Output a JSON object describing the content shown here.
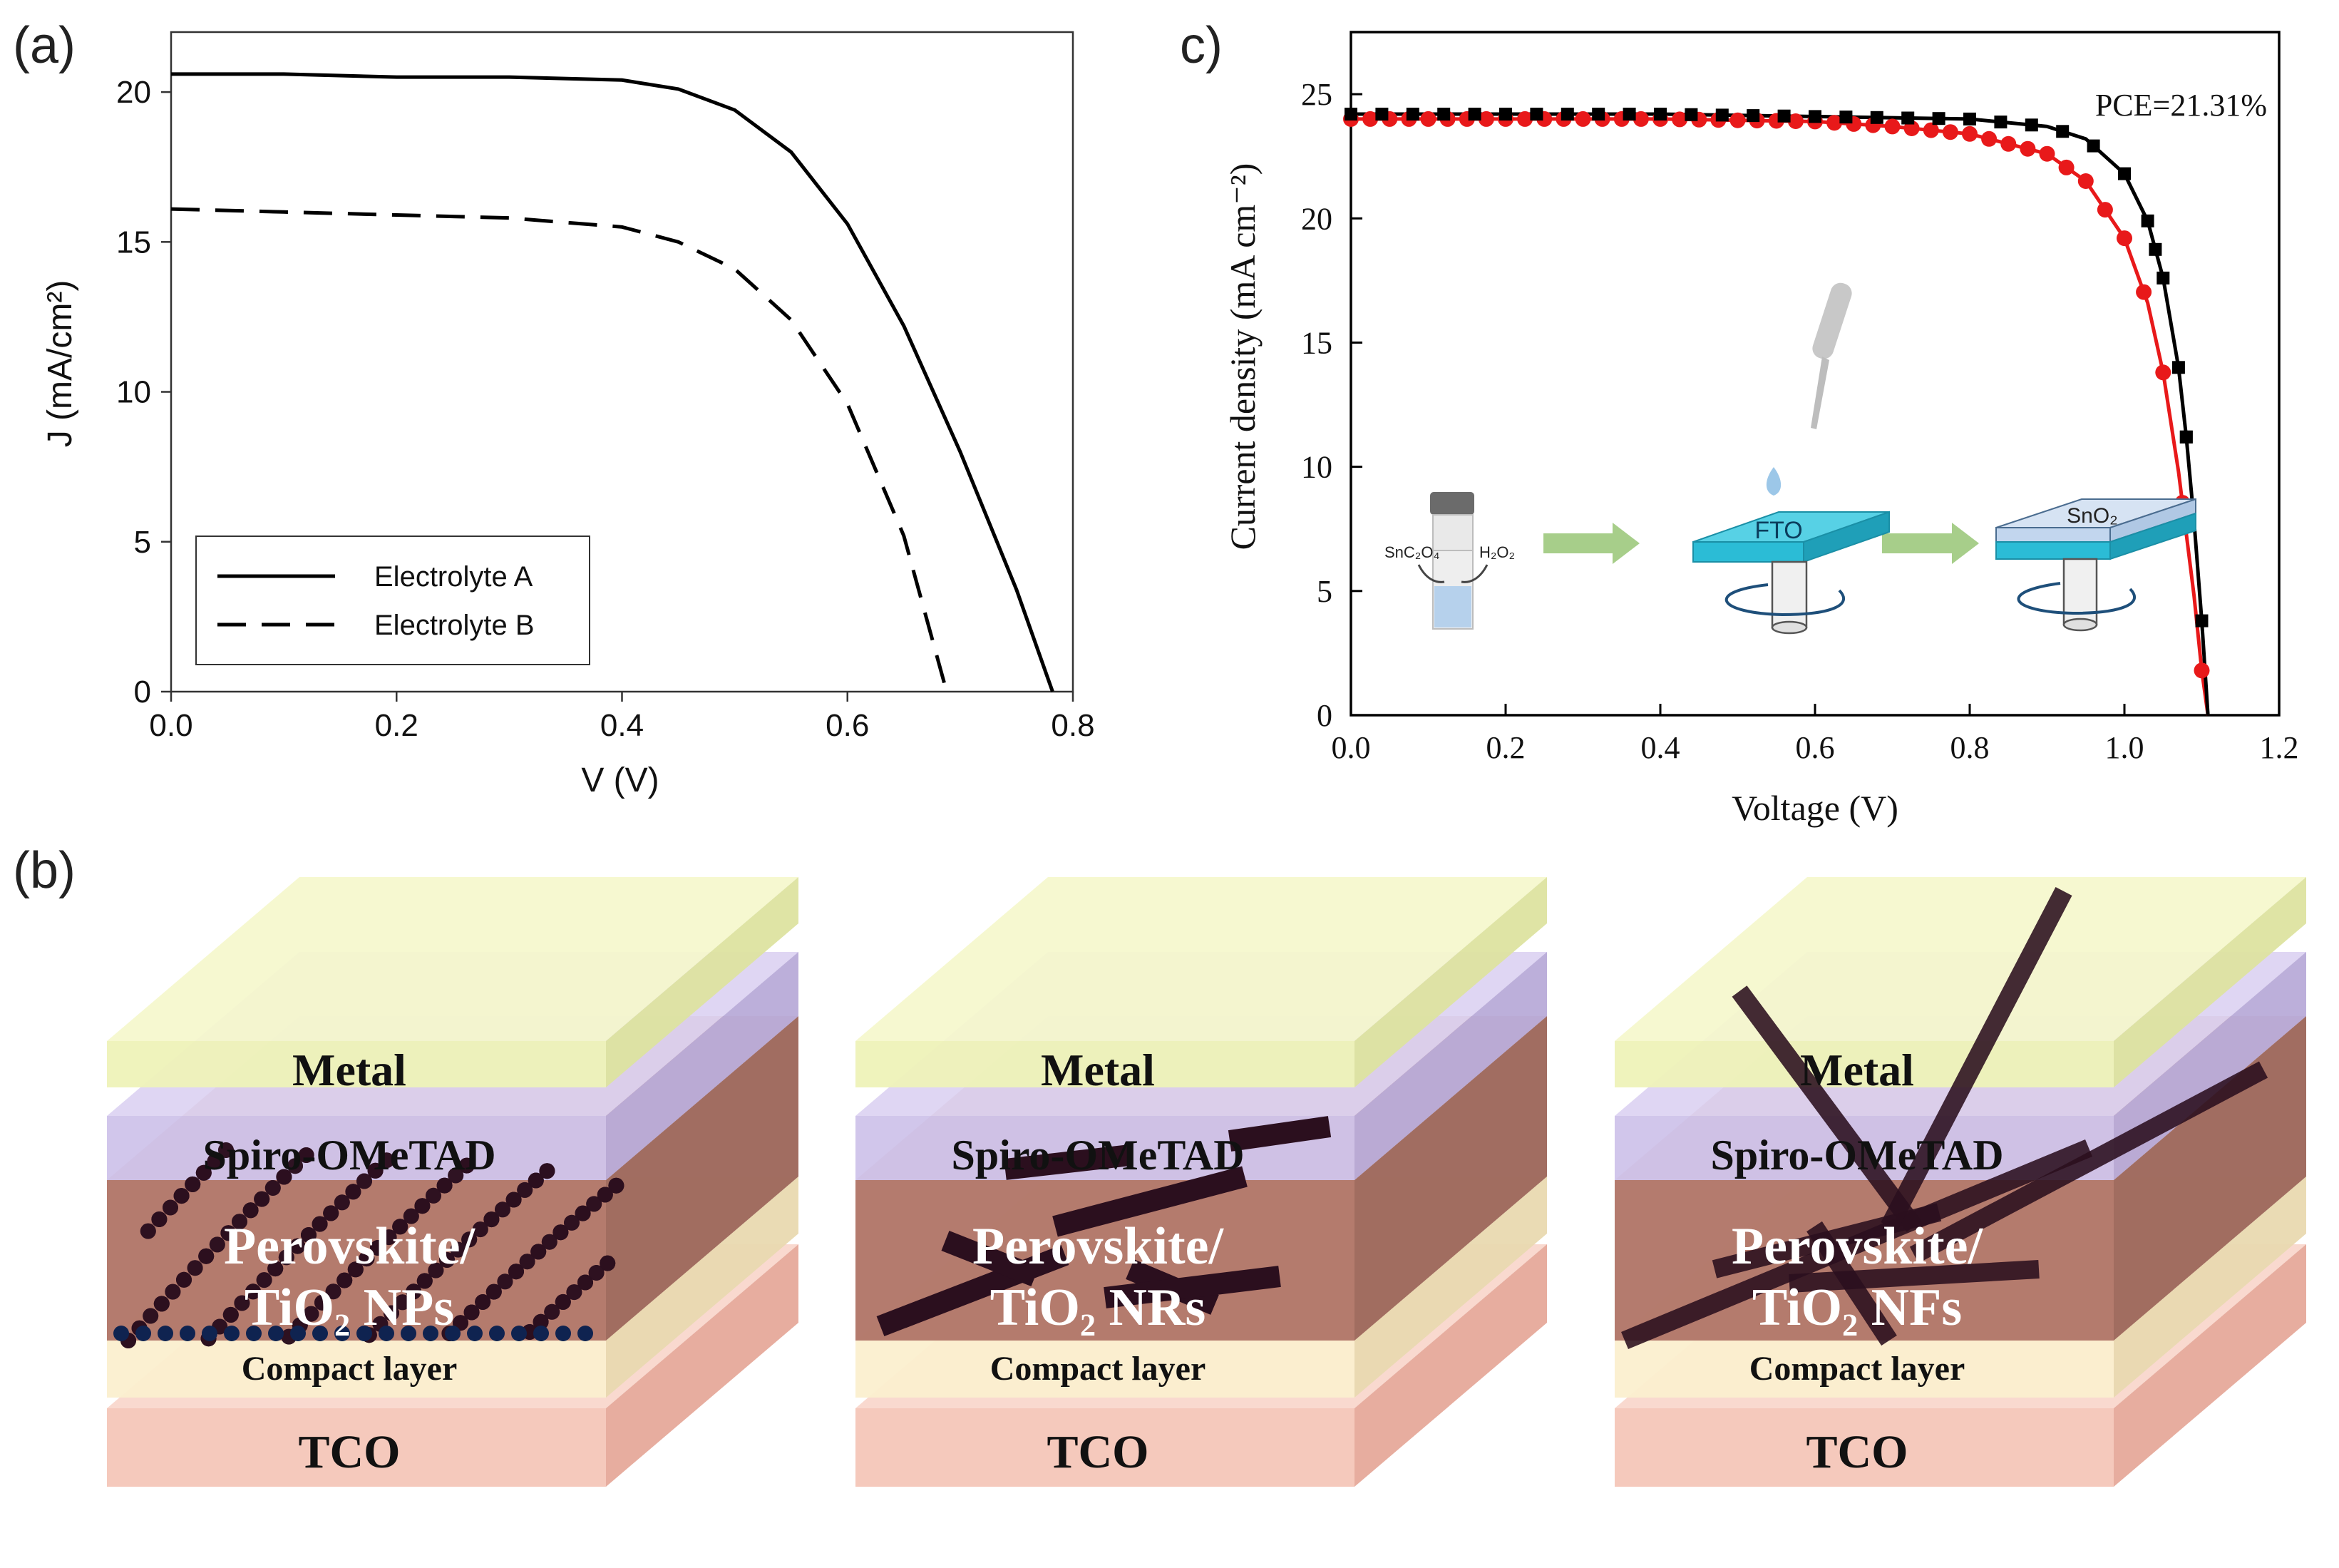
{
  "panel_labels": {
    "a": "(a)",
    "b": "(b)",
    "c": "c)"
  },
  "chart_data": [
    {
      "panel": "(a)",
      "type": "line",
      "xlabel": "V (V)",
      "ylabel": "J (mA/cm²)",
      "xlim": [
        0.0,
        0.8
      ],
      "ylim": [
        0,
        22
      ],
      "xticks": [
        "0.0",
        "0.2",
        "0.4",
        "0.6",
        "0.8"
      ],
      "yticks": [
        "0",
        "5",
        "10",
        "15",
        "20"
      ],
      "legend_position": "bottom-left",
      "series": [
        {
          "name": "Electrolyte A",
          "style": "solid",
          "x": [
            0.0,
            0.1,
            0.2,
            0.3,
            0.4,
            0.45,
            0.5,
            0.55,
            0.6,
            0.65,
            0.7,
            0.75,
            0.782
          ],
          "y": [
            20.6,
            20.6,
            20.5,
            20.5,
            20.4,
            20.1,
            19.4,
            18.0,
            15.6,
            12.2,
            8.0,
            3.4,
            0.0
          ]
        },
        {
          "name": "Electrolyte B",
          "style": "dashed",
          "x": [
            0.0,
            0.1,
            0.2,
            0.3,
            0.4,
            0.45,
            0.5,
            0.55,
            0.6,
            0.65,
            0.688
          ],
          "y": [
            16.1,
            16.0,
            15.9,
            15.8,
            15.5,
            15.0,
            14.1,
            12.4,
            9.6,
            5.2,
            0.0
          ]
        }
      ]
    },
    {
      "panel": "c)",
      "type": "line",
      "xlabel": "Voltage (V)",
      "ylabel": "Current density (mA cm⁻²)",
      "xlim": [
        0.0,
        1.2
      ],
      "ylim": [
        0,
        27.5
      ],
      "xticks": [
        "0.0",
        "0.2",
        "0.4",
        "0.6",
        "0.8",
        "1.0",
        "1.2"
      ],
      "yticks": [
        "0",
        "5",
        "10",
        "15",
        "20",
        "25"
      ],
      "annotation": "PCE=21.31%",
      "series": [
        {
          "name": "black (square markers)",
          "color": "#000000",
          "marker": "square",
          "x": [
            0.0,
            0.2,
            0.4,
            0.6,
            0.8,
            0.9,
            0.95,
            1.0,
            1.03,
            1.05,
            1.07,
            1.08,
            1.09,
            1.1,
            1.108
          ],
          "y": [
            24.2,
            24.2,
            24.2,
            24.1,
            24.0,
            23.7,
            23.2,
            21.8,
            19.9,
            17.6,
            14.0,
            11.2,
            7.8,
            3.8,
            0.0
          ]
        },
        {
          "name": "red (circle markers)",
          "color": "#e8191a",
          "marker": "circle",
          "x": [
            0.0,
            0.2,
            0.4,
            0.6,
            0.7,
            0.8,
            0.9,
            0.95,
            1.0,
            1.03,
            1.05,
            1.07,
            1.09,
            1.1,
            1.108
          ],
          "y": [
            24.0,
            24.0,
            24.0,
            23.9,
            23.7,
            23.4,
            22.6,
            21.5,
            19.2,
            16.6,
            13.8,
            9.8,
            4.8,
            1.8,
            0.0
          ]
        }
      ]
    }
  ],
  "inset": {
    "reagent_left": "SnC₂O₄",
    "reagent_right": "H₂O₂",
    "substrate": "FTO",
    "film": "SnO₂"
  },
  "panel_b": {
    "devices": [
      {
        "metal": "Metal",
        "htl": "Spiro-OMeTAD",
        "active_line1": "Perovskite/",
        "active_line2": "TiO₂ NPs",
        "compact": "Compact layer",
        "tco": "TCO"
      },
      {
        "metal": "Metal",
        "htl": "Spiro-OMeTAD",
        "active_line1": "Perovskite/",
        "active_line2": "TiO₂ NRs",
        "compact": "Compact layer",
        "tco": "TCO"
      },
      {
        "metal": "Metal",
        "htl": "Spiro-OMeTAD",
        "active_line1": "Perovskite/",
        "active_line2": "TiO₂ NFs",
        "compact": "Compact layer",
        "tco": "TCO"
      }
    ]
  }
}
